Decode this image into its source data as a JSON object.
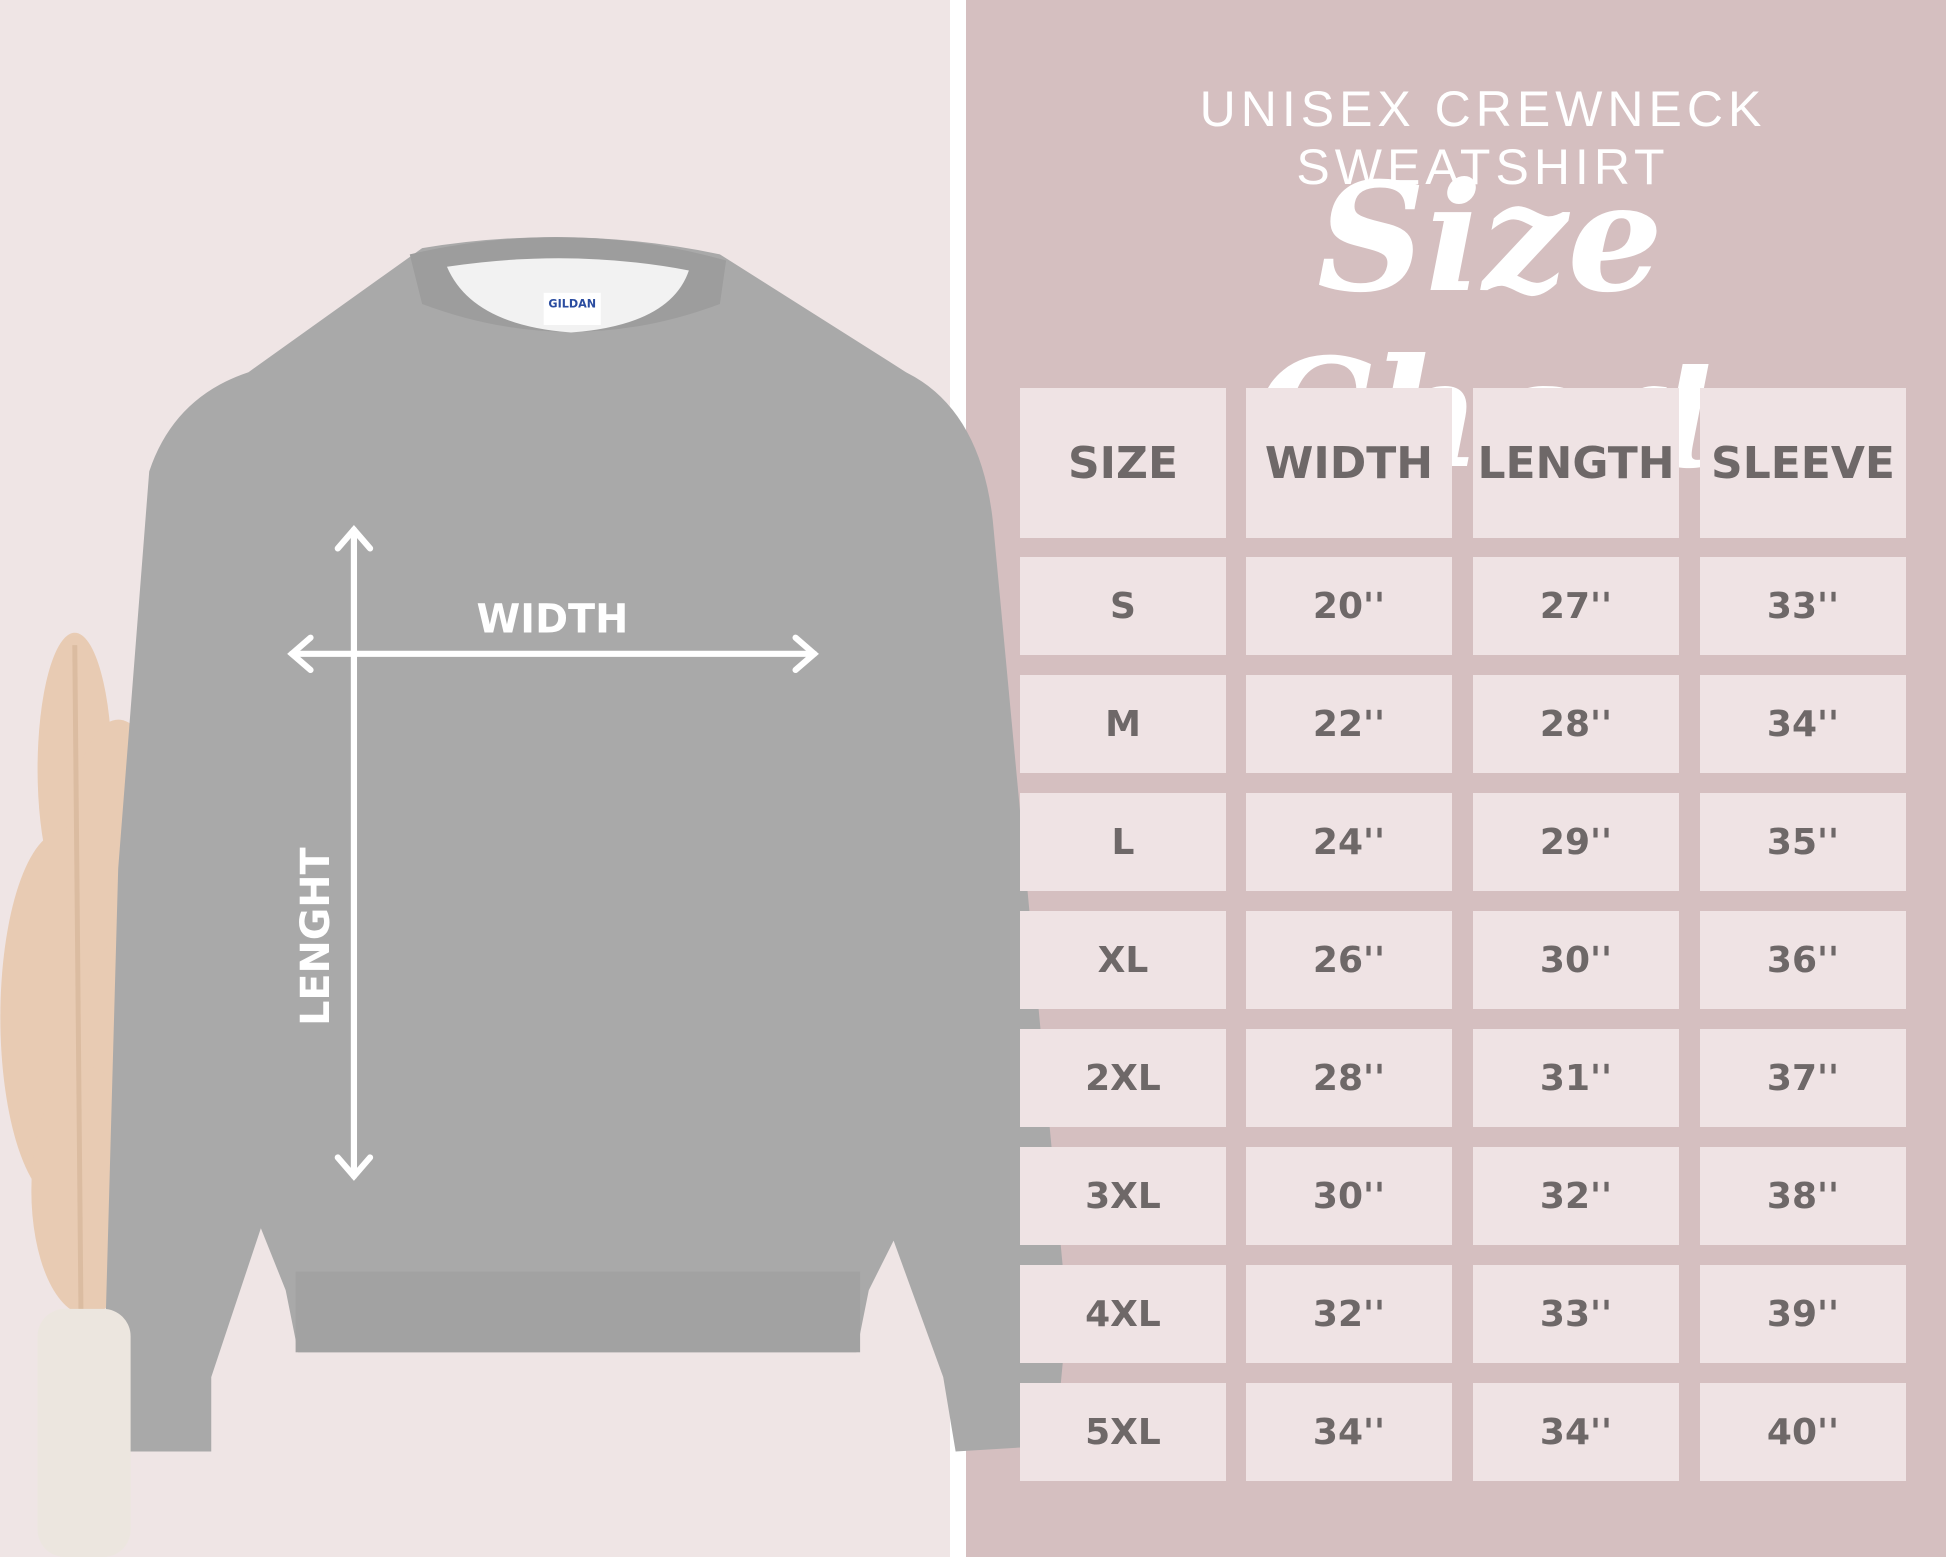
{
  "header": {
    "subtitle": "UNISEX CREWNECK SWEATSHIRT",
    "title": "Size Chart"
  },
  "illustration": {
    "tag_brand": "GILDAN",
    "width_label": "WIDTH",
    "length_label": "LENGHT"
  },
  "table": {
    "columns": [
      "SIZE",
      "WIDTH",
      "LENGTH",
      "SLEEVE"
    ],
    "rows": [
      [
        "S",
        "20''",
        "27''",
        "33''"
      ],
      [
        "M",
        "22''",
        "28''",
        "34''"
      ],
      [
        "L",
        "24''",
        "29''",
        "35''"
      ],
      [
        "XL",
        "26''",
        "30''",
        "36''"
      ],
      [
        "2XL",
        "28''",
        "31''",
        "37''"
      ],
      [
        "3XL",
        "30''",
        "32''",
        "38''"
      ],
      [
        "4XL",
        "32''",
        "33''",
        "39''"
      ],
      [
        "5XL",
        "34''",
        "34''",
        "40''"
      ]
    ]
  }
}
